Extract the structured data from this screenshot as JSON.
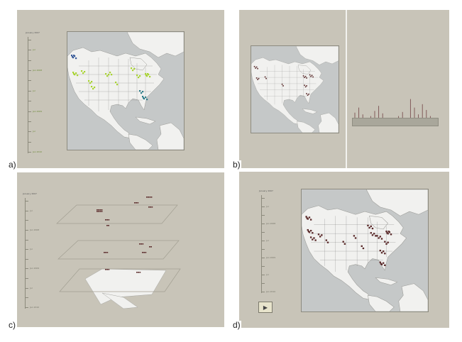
{
  "panels": {
    "a": {
      "label": "a)"
    },
    "b": {
      "label": "b)"
    },
    "c": {
      "label": "c)"
    },
    "d": {
      "label": "d)",
      "play_icon": "play-icon"
    }
  },
  "timeline": {
    "title": "January 2007",
    "ticks": [
      "",
      "Jul",
      "",
      "Jan 2008",
      "",
      "Jul",
      "",
      "Jan 2009",
      "",
      "Jul",
      "",
      "Jan 2010"
    ]
  },
  "colors": {
    "panel_bg": "#c8c4b8",
    "map_water": "#c5c8c8",
    "land": "#f1f1ef",
    "state_border": "#777777",
    "event_dark": "#5a2a2a",
    "event_green": "#a8d430",
    "event_blue": "#3a5c9a",
    "event_teal": "#2e7d8a",
    "hist_bar": "#7a5050"
  },
  "histogram": {
    "values": [
      0.4,
      0.55,
      0.35,
      0.2,
      0.3,
      0.45,
      0.6,
      0.38,
      0.18,
      0.12,
      0.25,
      0.3,
      0.42,
      0.22,
      0.8,
      0.55,
      0.35,
      0.65,
      0.48,
      0.3,
      0.2
    ]
  }
}
